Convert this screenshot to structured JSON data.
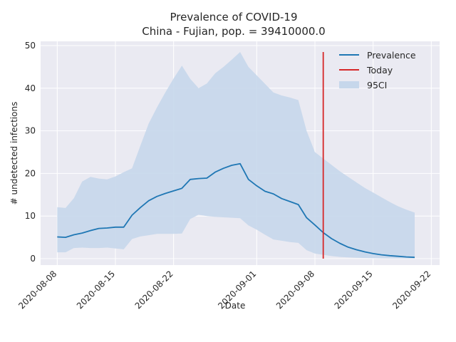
{
  "chart_data": {
    "type": "line",
    "title_line1": "Prevalence of COVID-19",
    "title_line2": "China - Fujian, pop. = 39410000.0",
    "xlabel": "Date",
    "ylabel": "# undetected infections",
    "x_ticks": [
      "2020-08-08",
      "2020-08-15",
      "2020-08-22",
      "2020-09-01",
      "2020-09-08",
      "2020-09-15",
      "2020-09-22"
    ],
    "y_ticks": [
      0,
      10,
      20,
      30,
      40,
      50
    ],
    "xlim": [
      "2020-08-06",
      "2020-09-23"
    ],
    "ylim": [
      -1.5,
      51
    ],
    "grid": true,
    "legend_position": "top-right",
    "colors": {
      "prevalence": "#1f77b4",
      "today": "#d62728",
      "ci": "#c6d7eb",
      "background": "#eaeaf2",
      "grid": "#ffffff"
    },
    "series": [
      {
        "name": "Prevalence",
        "x": [
          "2020-08-08",
          "2020-08-09",
          "2020-08-10",
          "2020-08-11",
          "2020-08-12",
          "2020-08-13",
          "2020-08-14",
          "2020-08-15",
          "2020-08-16",
          "2020-08-17",
          "2020-08-18",
          "2020-08-19",
          "2020-08-20",
          "2020-08-21",
          "2020-08-22",
          "2020-08-23",
          "2020-08-24",
          "2020-08-25",
          "2020-08-26",
          "2020-08-27",
          "2020-08-28",
          "2020-08-29",
          "2020-08-30",
          "2020-08-31",
          "2020-09-01",
          "2020-09-02",
          "2020-09-03",
          "2020-09-04",
          "2020-09-05",
          "2020-09-06",
          "2020-09-07",
          "2020-09-08",
          "2020-09-09",
          "2020-09-10",
          "2020-09-11",
          "2020-09-12",
          "2020-09-13",
          "2020-09-14",
          "2020-09-15",
          "2020-09-16",
          "2020-09-17",
          "2020-09-18",
          "2020-09-19",
          "2020-09-20"
        ],
        "values": [
          5.1,
          5.0,
          5.6,
          6.0,
          6.6,
          7.1,
          7.2,
          7.4,
          7.4,
          10.2,
          12.0,
          13.6,
          14.6,
          15.3,
          15.9,
          16.5,
          18.6,
          18.8,
          18.9,
          20.3,
          21.2,
          21.9,
          22.3,
          18.6,
          17.1,
          15.8,
          15.2,
          14.1,
          13.4,
          12.7,
          9.6,
          7.9,
          6.1,
          4.7,
          3.6,
          2.7,
          2.1,
          1.6,
          1.2,
          0.9,
          0.7,
          0.55,
          0.4,
          0.3
        ]
      },
      {
        "name": "Today",
        "x": [
          "2020-09-09",
          "2020-09-09"
        ],
        "values": [
          0,
          48.5
        ]
      },
      {
        "name": "95CI",
        "x": [
          "2020-08-08",
          "2020-08-09",
          "2020-08-10",
          "2020-08-11",
          "2020-08-12",
          "2020-08-13",
          "2020-08-14",
          "2020-08-15",
          "2020-08-16",
          "2020-08-17",
          "2020-08-18",
          "2020-08-19",
          "2020-08-20",
          "2020-08-21",
          "2020-08-22",
          "2020-08-23",
          "2020-08-24",
          "2020-08-25",
          "2020-08-26",
          "2020-08-27",
          "2020-08-28",
          "2020-08-29",
          "2020-08-30",
          "2020-08-31",
          "2020-09-01",
          "2020-09-02",
          "2020-09-03",
          "2020-09-04",
          "2020-09-05",
          "2020-09-06",
          "2020-09-07",
          "2020-09-08",
          "2020-09-09",
          "2020-09-10",
          "2020-09-11",
          "2020-09-12",
          "2020-09-13",
          "2020-09-14",
          "2020-09-15",
          "2020-09-16",
          "2020-09-17",
          "2020-09-18",
          "2020-09-19",
          "2020-09-20"
        ],
        "lower": [
          1.5,
          1.5,
          2.5,
          2.6,
          2.5,
          2.5,
          2.6,
          2.4,
          2.2,
          4.6,
          5.2,
          5.5,
          5.8,
          5.8,
          5.8,
          5.9,
          9.3,
          10.3,
          10.0,
          9.8,
          9.7,
          9.6,
          9.5,
          7.8,
          6.8,
          5.6,
          4.5,
          4.2,
          3.9,
          3.7,
          2.0,
          1.2,
          0.9,
          0.6,
          0.4,
          0.3,
          0.2,
          0.15,
          0.1,
          0.08,
          0.06,
          0.05,
          0.04,
          0.03
        ],
        "upper": [
          12.1,
          11.9,
          14.2,
          18.1,
          19.2,
          18.8,
          18.6,
          19.3,
          20.3,
          21.2,
          26.5,
          31.7,
          35.5,
          39.0,
          42.3,
          45.3,
          42.2,
          40.0,
          41.1,
          43.5,
          45.0,
          46.7,
          48.5,
          45.0,
          43.0,
          41.0,
          39.0,
          38.3,
          37.8,
          37.2,
          30.0,
          25.0,
          23.5,
          22.0,
          20.5,
          19.2,
          17.9,
          16.6,
          15.5,
          14.4,
          13.3,
          12.3,
          11.5,
          10.8
        ]
      }
    ]
  }
}
